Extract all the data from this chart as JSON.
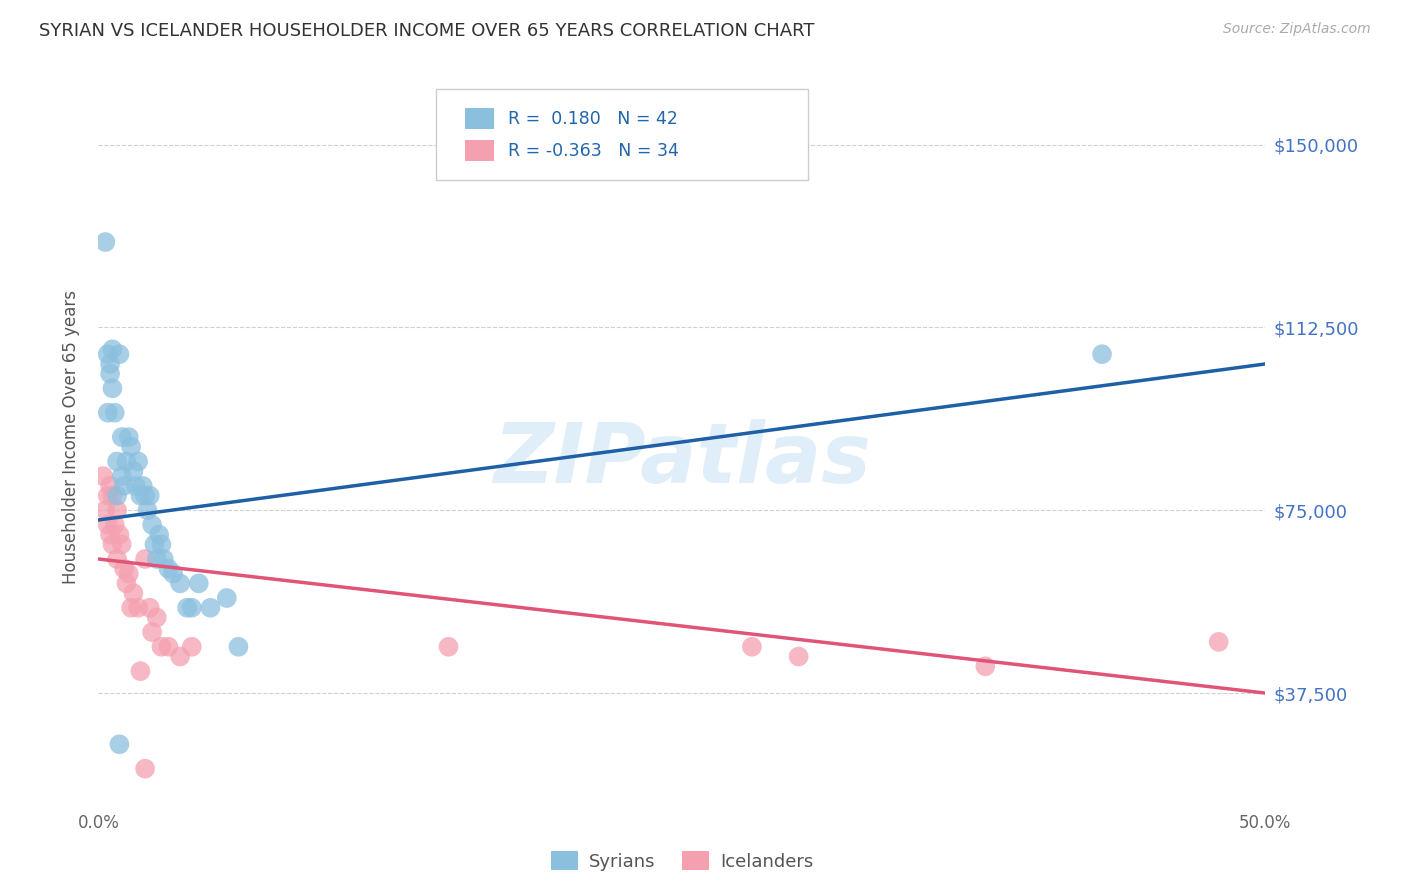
{
  "title": "SYRIAN VS ICELANDER HOUSEHOLDER INCOME OVER 65 YEARS CORRELATION CHART",
  "source": "Source: ZipAtlas.com",
  "ylabel": "Householder Income Over 65 years",
  "xlim": [
    0.0,
    0.5
  ],
  "ylim": [
    15000,
    165000
  ],
  "yticks": [
    37500,
    75000,
    112500,
    150000
  ],
  "ytick_labels": [
    "$37,500",
    "$75,000",
    "$112,500",
    "$150,000"
  ],
  "xtick_positions": [
    0.0,
    0.05,
    0.1,
    0.15,
    0.2,
    0.25,
    0.3,
    0.35,
    0.4,
    0.45,
    0.5
  ],
  "xtick_labels": [
    "0.0%",
    "",
    "",
    "",
    "",
    "",
    "",
    "",
    "",
    "",
    "50.0%"
  ],
  "watermark": "ZIPatlas",
  "r1": "0.180",
  "n1": "42",
  "r2": "-0.363",
  "n2": "34",
  "blue_color": "#8bbfde",
  "pink_color": "#f4a0b0",
  "line_blue": "#1f5fa6",
  "line_pink": "#e05575",
  "blue_line_y0": 73000,
  "blue_line_y1": 105000,
  "pink_line_y0": 65000,
  "pink_line_y1": 37500,
  "syrians_x": [
    0.003,
    0.004,
    0.004,
    0.005,
    0.005,
    0.006,
    0.006,
    0.007,
    0.008,
    0.008,
    0.009,
    0.01,
    0.01,
    0.011,
    0.012,
    0.013,
    0.014,
    0.015,
    0.016,
    0.017,
    0.018,
    0.019,
    0.02,
    0.021,
    0.022,
    0.023,
    0.024,
    0.025,
    0.026,
    0.027,
    0.028,
    0.03,
    0.032,
    0.035,
    0.038,
    0.04,
    0.043,
    0.048,
    0.055,
    0.06,
    0.43,
    0.009
  ],
  "syrians_y": [
    130000,
    107000,
    95000,
    105000,
    103000,
    100000,
    108000,
    95000,
    85000,
    78000,
    107000,
    90000,
    82000,
    80000,
    85000,
    90000,
    88000,
    83000,
    80000,
    85000,
    78000,
    80000,
    78000,
    75000,
    78000,
    72000,
    68000,
    65000,
    70000,
    68000,
    65000,
    63000,
    62000,
    60000,
    55000,
    55000,
    60000,
    55000,
    57000,
    47000,
    107000,
    27000
  ],
  "icelanders_x": [
    0.002,
    0.003,
    0.004,
    0.004,
    0.005,
    0.005,
    0.006,
    0.006,
    0.007,
    0.008,
    0.008,
    0.009,
    0.01,
    0.011,
    0.012,
    0.013,
    0.014,
    0.015,
    0.017,
    0.018,
    0.02,
    0.022,
    0.023,
    0.025,
    0.027,
    0.03,
    0.035,
    0.04,
    0.15,
    0.28,
    0.3,
    0.38,
    0.48,
    0.02
  ],
  "icelanders_y": [
    82000,
    75000,
    78000,
    72000,
    80000,
    70000,
    78000,
    68000,
    72000,
    75000,
    65000,
    70000,
    68000,
    63000,
    60000,
    62000,
    55000,
    58000,
    55000,
    42000,
    65000,
    55000,
    50000,
    53000,
    47000,
    47000,
    45000,
    47000,
    47000,
    47000,
    45000,
    43000,
    48000,
    22000
  ]
}
